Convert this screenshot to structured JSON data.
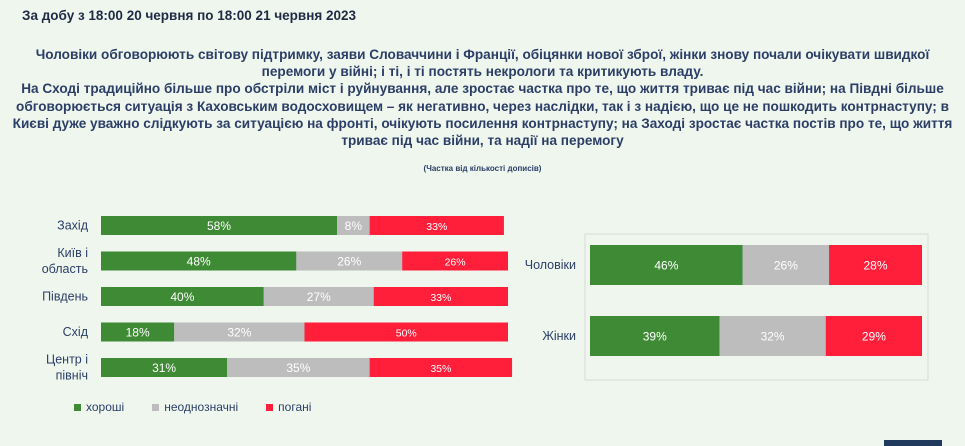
{
  "header": {
    "date_range": "За добу з 18:00 20 червня по 18:00 21 червня 2023"
  },
  "headline": {
    "line1": "Чоловіки обговорюють світову підтримку, заяви Словаччини і Франції, обіцянки нової зброї, жінки знову почали очікувати швидкої перемоги у війні; і ті, і ті постять некрологи та критикують владу.",
    "line2": "На Сході традиційно більше про обстріли міст і руйнування, але зростає частка про те, що життя триває під час війни; на Півдні більше обговорюється ситуація з Каховським водосховищем – як негативно, через наслідки, так і з надією, що це не пошкодить контрнаступу; в Києві дуже уважно слідкують за ситуацією на фронті, очікують посилення контрнаступу; на Заході зростає частка постів про те, що життя триває під час війни, та надії на перемогу"
  },
  "note": "(Частка від кількості дописів)",
  "colors": {
    "positive": "#3f8a35",
    "neutral": "#bdbdbd",
    "negative": "#ff1f3a"
  },
  "legend": [
    {
      "name": "хороші",
      "color": "#3f8a35"
    },
    {
      "name": "неоднозначні",
      "color": "#bdbdbd"
    },
    {
      "name": "погані",
      "color": "#ff1f3a"
    }
  ],
  "chart_data": [
    {
      "type": "bar",
      "orientation": "horizontal",
      "stacked": true,
      "categories": [
        [
          "Захід"
        ],
        [
          "Київ і",
          "область"
        ],
        [
          "Південь"
        ],
        [
          "Схід"
        ],
        [
          "Центр і",
          "північ"
        ]
      ],
      "series": [
        {
          "name": "хороші",
          "values": [
            58,
            48,
            40,
            18,
            31
          ]
        },
        {
          "name": "неоднозначні",
          "values": [
            8,
            26,
            27,
            32,
            35
          ]
        },
        {
          "name": "погані",
          "values": [
            33,
            26,
            33,
            50,
            35
          ]
        }
      ],
      "labels": [
        [
          "58%",
          "8%",
          "33%"
        ],
        [
          "48%",
          "26%",
          "26%"
        ],
        [
          "40%",
          "27%",
          "33%"
        ],
        [
          "18%",
          "32%",
          "50%"
        ],
        [
          "31%",
          "35%",
          "35%"
        ]
      ],
      "unit": "%",
      "legend": "bottom-left"
    },
    {
      "type": "bar",
      "orientation": "horizontal",
      "stacked": true,
      "categories": [
        [
          "Чоловіки"
        ],
        [
          "Жінки"
        ]
      ],
      "series": [
        {
          "name": "хороші",
          "values": [
            46,
            39
          ]
        },
        {
          "name": "неоднозначні",
          "values": [
            26,
            32
          ]
        },
        {
          "name": "погані",
          "values": [
            28,
            29
          ]
        }
      ],
      "labels": [
        [
          "46%",
          "26%",
          "28%"
        ],
        [
          "39%",
          "32%",
          "29%"
        ]
      ],
      "unit": "%"
    }
  ]
}
